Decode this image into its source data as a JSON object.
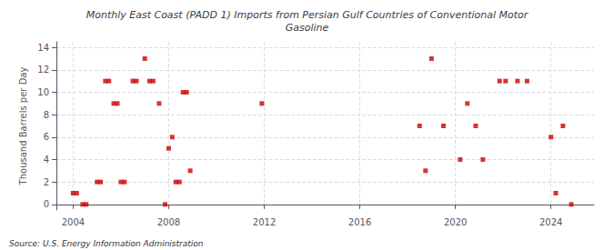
{
  "chart_data": {
    "type": "scatter",
    "title": "Monthly East Coast (PADD 1) Imports from Persian Gulf Countries of Conventional Motor\nGasoline",
    "ylabel": "Thousand Barrels per Day",
    "annotations": [
      "Source: U.S. Energy Information Administration"
    ],
    "color": "#cc0000",
    "marker": "square",
    "grid": true,
    "xlim": [
      2003.3,
      2025.8
    ],
    "ylim": [
      -0.5,
      14.5
    ],
    "xticks": [
      2004,
      2008,
      2012,
      2016,
      2020,
      2024
    ],
    "yticks": [
      0,
      2,
      4,
      6,
      8,
      10,
      12,
      14
    ],
    "x": [
      2004.0,
      2004.15,
      2004.4,
      2004.55,
      2005.0,
      2005.15,
      2005.35,
      2005.5,
      2005.7,
      2005.85,
      2006.0,
      2006.15,
      2006.5,
      2006.65,
      2007.0,
      2007.2,
      2007.35,
      2007.6,
      2007.85,
      2008.0,
      2008.15,
      2008.3,
      2008.45,
      2008.6,
      2008.75,
      2008.9,
      2011.9,
      2018.5,
      2018.75,
      2019.0,
      2019.5,
      2020.2,
      2020.5,
      2020.85,
      2021.15,
      2021.85,
      2022.1,
      2022.6,
      2023.0,
      2024.0,
      2024.2,
      2024.5,
      2024.85
    ],
    "values": [
      1,
      1,
      0,
      0,
      2,
      2,
      11,
      11,
      9,
      9,
      2,
      2,
      11,
      11,
      13,
      11,
      11,
      9,
      0,
      5,
      6,
      2,
      2,
      10,
      10,
      3,
      9,
      7,
      3,
      13,
      7,
      4,
      9,
      7,
      4,
      11,
      11,
      11,
      11,
      6,
      1,
      7,
      0
    ]
  }
}
